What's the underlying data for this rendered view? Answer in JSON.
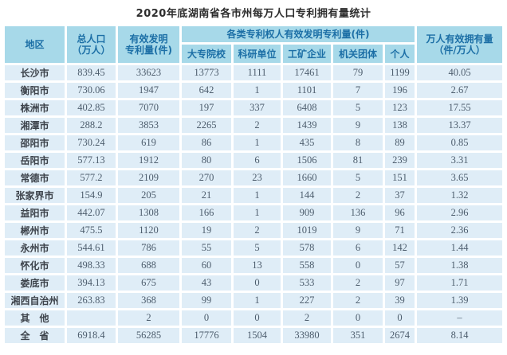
{
  "title": "2020年底湖南省各市州每万人口专利拥有量统计",
  "colors": {
    "header_bg": "#a7d9e9",
    "header_text": "#1c6fa6",
    "cell_bg": "#dfedf7",
    "number_text": "#4d5d6d",
    "region_text": "#3d434b",
    "gap": "#ffffff"
  },
  "chart_data": {
    "type": "table",
    "title": "2020年底湖南省各市州每万人口专利拥有量统计",
    "columns": {
      "region": "地区",
      "population": [
        "总人口",
        "（万人）"
      ],
      "valid": [
        "有效发明",
        "专利量(件)"
      ],
      "group": "各类专利权人有效发明专利量(件)",
      "sub": [
        "大专院校",
        "科研单位",
        "工矿企业",
        "机关团体",
        "个人"
      ],
      "per10k": [
        "万人有效拥有量",
        "（件/万人）"
      ]
    },
    "rows": [
      [
        "长沙市",
        "839.45",
        "33623",
        "13773",
        "1111",
        "17461",
        "79",
        "1199",
        "40.05"
      ],
      [
        "衡阳市",
        "730.06",
        "1947",
        "642",
        "1",
        "1101",
        "7",
        "196",
        "2.67"
      ],
      [
        "株洲市",
        "402.85",
        "7070",
        "197",
        "337",
        "6408",
        "5",
        "123",
        "17.55"
      ],
      [
        "湘潭市",
        "288.2",
        "3853",
        "2265",
        "2",
        "1439",
        "9",
        "138",
        "13.37"
      ],
      [
        "邵阳市",
        "730.24",
        "619",
        "86",
        "1",
        "435",
        "8",
        "89",
        "0.85"
      ],
      [
        "岳阳市",
        "577.13",
        "1912",
        "80",
        "6",
        "1506",
        "81",
        "239",
        "3.31"
      ],
      [
        "常德市",
        "577.2",
        "2109",
        "270",
        "23",
        "1660",
        "5",
        "151",
        "3.65"
      ],
      [
        "张家界市",
        "154.9",
        "205",
        "21",
        "1",
        "144",
        "2",
        "37",
        "1.32"
      ],
      [
        "益阳市",
        "442.07",
        "1308",
        "166",
        "1",
        "909",
        "136",
        "96",
        "2.96"
      ],
      [
        "郴州市",
        "475.5",
        "1120",
        "19",
        "2",
        "1019",
        "9",
        "71",
        "2.36"
      ],
      [
        "永州市",
        "544.61",
        "786",
        "55",
        "5",
        "578",
        "6",
        "142",
        "1.44"
      ],
      [
        "怀化市",
        "498.33",
        "688",
        "60",
        "13",
        "558",
        "0",
        "57",
        "1.38"
      ],
      [
        "娄底市",
        "394.13",
        "675",
        "43",
        "0",
        "533",
        "2",
        "97",
        "1.71"
      ],
      [
        "湘西自治州",
        "263.83",
        "368",
        "99",
        "1",
        "227",
        "2",
        "39",
        "1.39"
      ],
      [
        "其　他",
        "",
        "2",
        "0",
        "0",
        "2",
        "0",
        "0",
        "–"
      ],
      [
        "全　省",
        "6918.4",
        "56285",
        "17776",
        "1504",
        "33980",
        "351",
        "2674",
        "8.14"
      ]
    ]
  }
}
